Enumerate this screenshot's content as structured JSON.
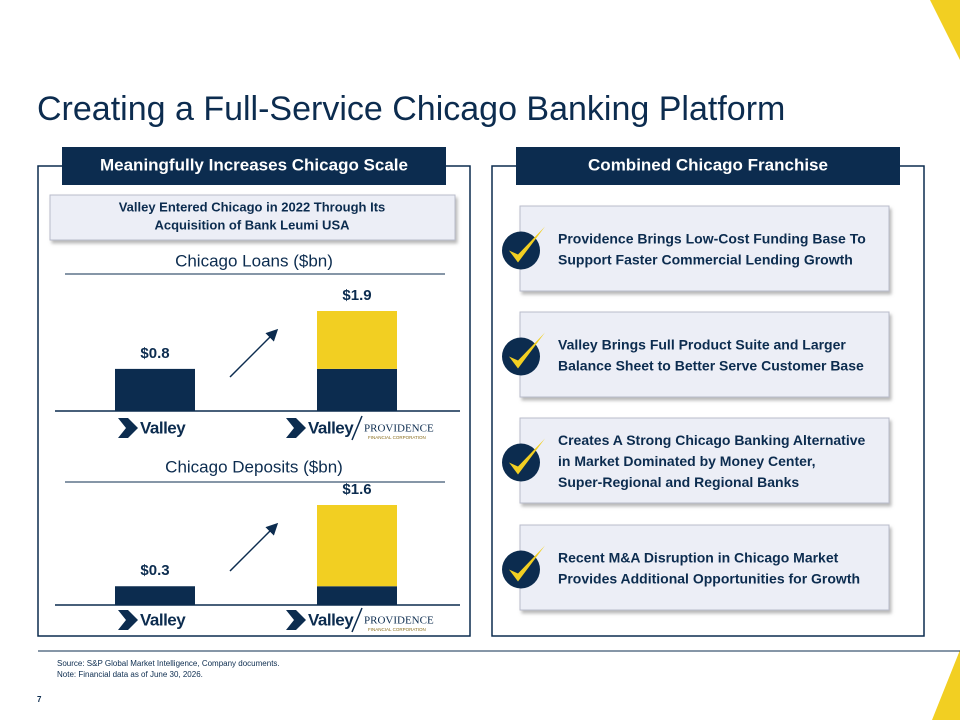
{
  "header": {
    "title": "Creating a Full-Service Chicago Banking Platform"
  },
  "left_panel": {
    "heading": "Meaningfully Increases Chicago Scale",
    "callout": [
      "Valley Entered Chicago in 2022 Through Its",
      "Acquisition of Bank Leumi USA"
    ]
  },
  "right_panel": {
    "heading": "Combined Chicago Franchise",
    "items": [
      [
        "Providence Brings Low-Cost Funding Base To",
        "Support Faster Commercial Lending Growth"
      ],
      [
        "Valley Brings Full Product Suite and Larger",
        "Balance Sheet to Better Serve Customer Base"
      ],
      [
        "Creates A Strong Chicago Banking Alternative",
        "in Market Dominated by Money Center,",
        "Super-Regional and Regional Banks"
      ],
      [
        "Recent M&A Disruption in Chicago Market",
        "Provides Additional Opportunities for Growth"
      ]
    ]
  },
  "logos": {
    "valley": "Valley",
    "providence": "PROVIDENCE",
    "providence_sub": "FINANCIAL CORPORATION"
  },
  "chart_data": [
    {
      "type": "bar",
      "title": "Chicago Loans ($bn)",
      "categories": [
        null,
        null
      ],
      "series": [
        {
          "color": "#0c2c4f",
          "values": [
            0.8,
            0.8
          ]
        },
        {
          "color": "#f2cf22",
          "values": [
            null,
            1.1
          ]
        }
      ],
      "totals": [
        0.8,
        1.9
      ],
      "value_labels": [
        "$0.8",
        "$1.9"
      ]
    },
    {
      "type": "bar",
      "title": "Chicago Deposits ($bn)",
      "categories": [
        null,
        null
      ],
      "series": [
        {
          "color": "#0c2c4f",
          "values": [
            0.3,
            0.3
          ]
        },
        {
          "color": "#f2cf22",
          "values": [
            null,
            1.3
          ]
        }
      ],
      "totals": [
        0.3,
        1.6
      ],
      "value_labels": [
        "$0.3",
        "$1.6"
      ]
    }
  ],
  "footer": {
    "source": "Source: S&P Global Market Intelligence, Company documents.",
    "note": "Note: Financial data as of June 30, 2026.",
    "page": "7"
  }
}
